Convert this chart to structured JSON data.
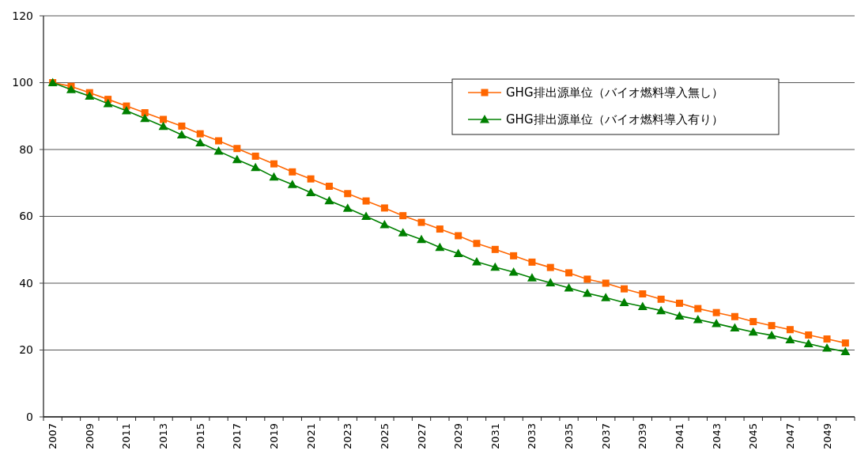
{
  "chart_data": {
    "type": "line",
    "categories": [
      "2007",
      null,
      "2009",
      null,
      "2011",
      null,
      "2013",
      null,
      "2015",
      null,
      "2017",
      null,
      "2019",
      null,
      "2021",
      null,
      "2023",
      null,
      "2025",
      null,
      "2027",
      null,
      "2029",
      null,
      "2031",
      null,
      "2033",
      null,
      "2035",
      null,
      "2037",
      null,
      "2039",
      null,
      "2041",
      null,
      "2043",
      null,
      "2045",
      null,
      "2047",
      null,
      "2049",
      null
    ],
    "series": [
      {
        "name": "GHG排出源単位（バイオ燃料導入無し）",
        "color": "#ff6600",
        "marker": "square",
        "values": [
          100,
          98.9,
          97,
          95,
          93,
          91,
          89,
          87,
          84.7,
          82.6,
          80.3,
          78,
          75.7,
          73.3,
          71.2,
          69,
          66.8,
          64.6,
          62.5,
          60.2,
          58.2,
          56.2,
          54.2,
          51.9,
          50.1,
          48.2,
          46.3,
          44.7,
          43.1,
          41.2,
          40,
          38.3,
          36.8,
          35.2,
          34,
          32.4,
          31.2,
          30,
          28.5,
          27.3,
          26.1,
          24.5,
          23.3,
          22.1
        ]
      },
      {
        "name": "GHG排出源単位（バイオ燃料導入有り）",
        "color": "#008000",
        "marker": "triangle",
        "values": [
          100,
          97.9,
          96,
          93.7,
          91.6,
          89.3,
          86.9,
          84.4,
          82,
          79.5,
          77,
          74.6,
          71.8,
          69.5,
          67.1,
          64.7,
          62.4,
          60,
          57.5,
          55.1,
          53.1,
          50.7,
          48.9,
          46.4,
          44.8,
          43.3,
          41.6,
          40.1,
          38.6,
          37,
          35.7,
          34.2,
          33,
          31.8,
          30.2,
          29.1,
          27.9,
          26.6,
          25.4,
          24.4,
          23.1,
          21.9,
          20.6,
          19.5
        ]
      }
    ],
    "ylim": [
      0,
      120
    ],
    "yticks": [
      0,
      20,
      40,
      60,
      80,
      100,
      120
    ],
    "grid": "y",
    "legend": "top right",
    "line_style": "solid"
  }
}
